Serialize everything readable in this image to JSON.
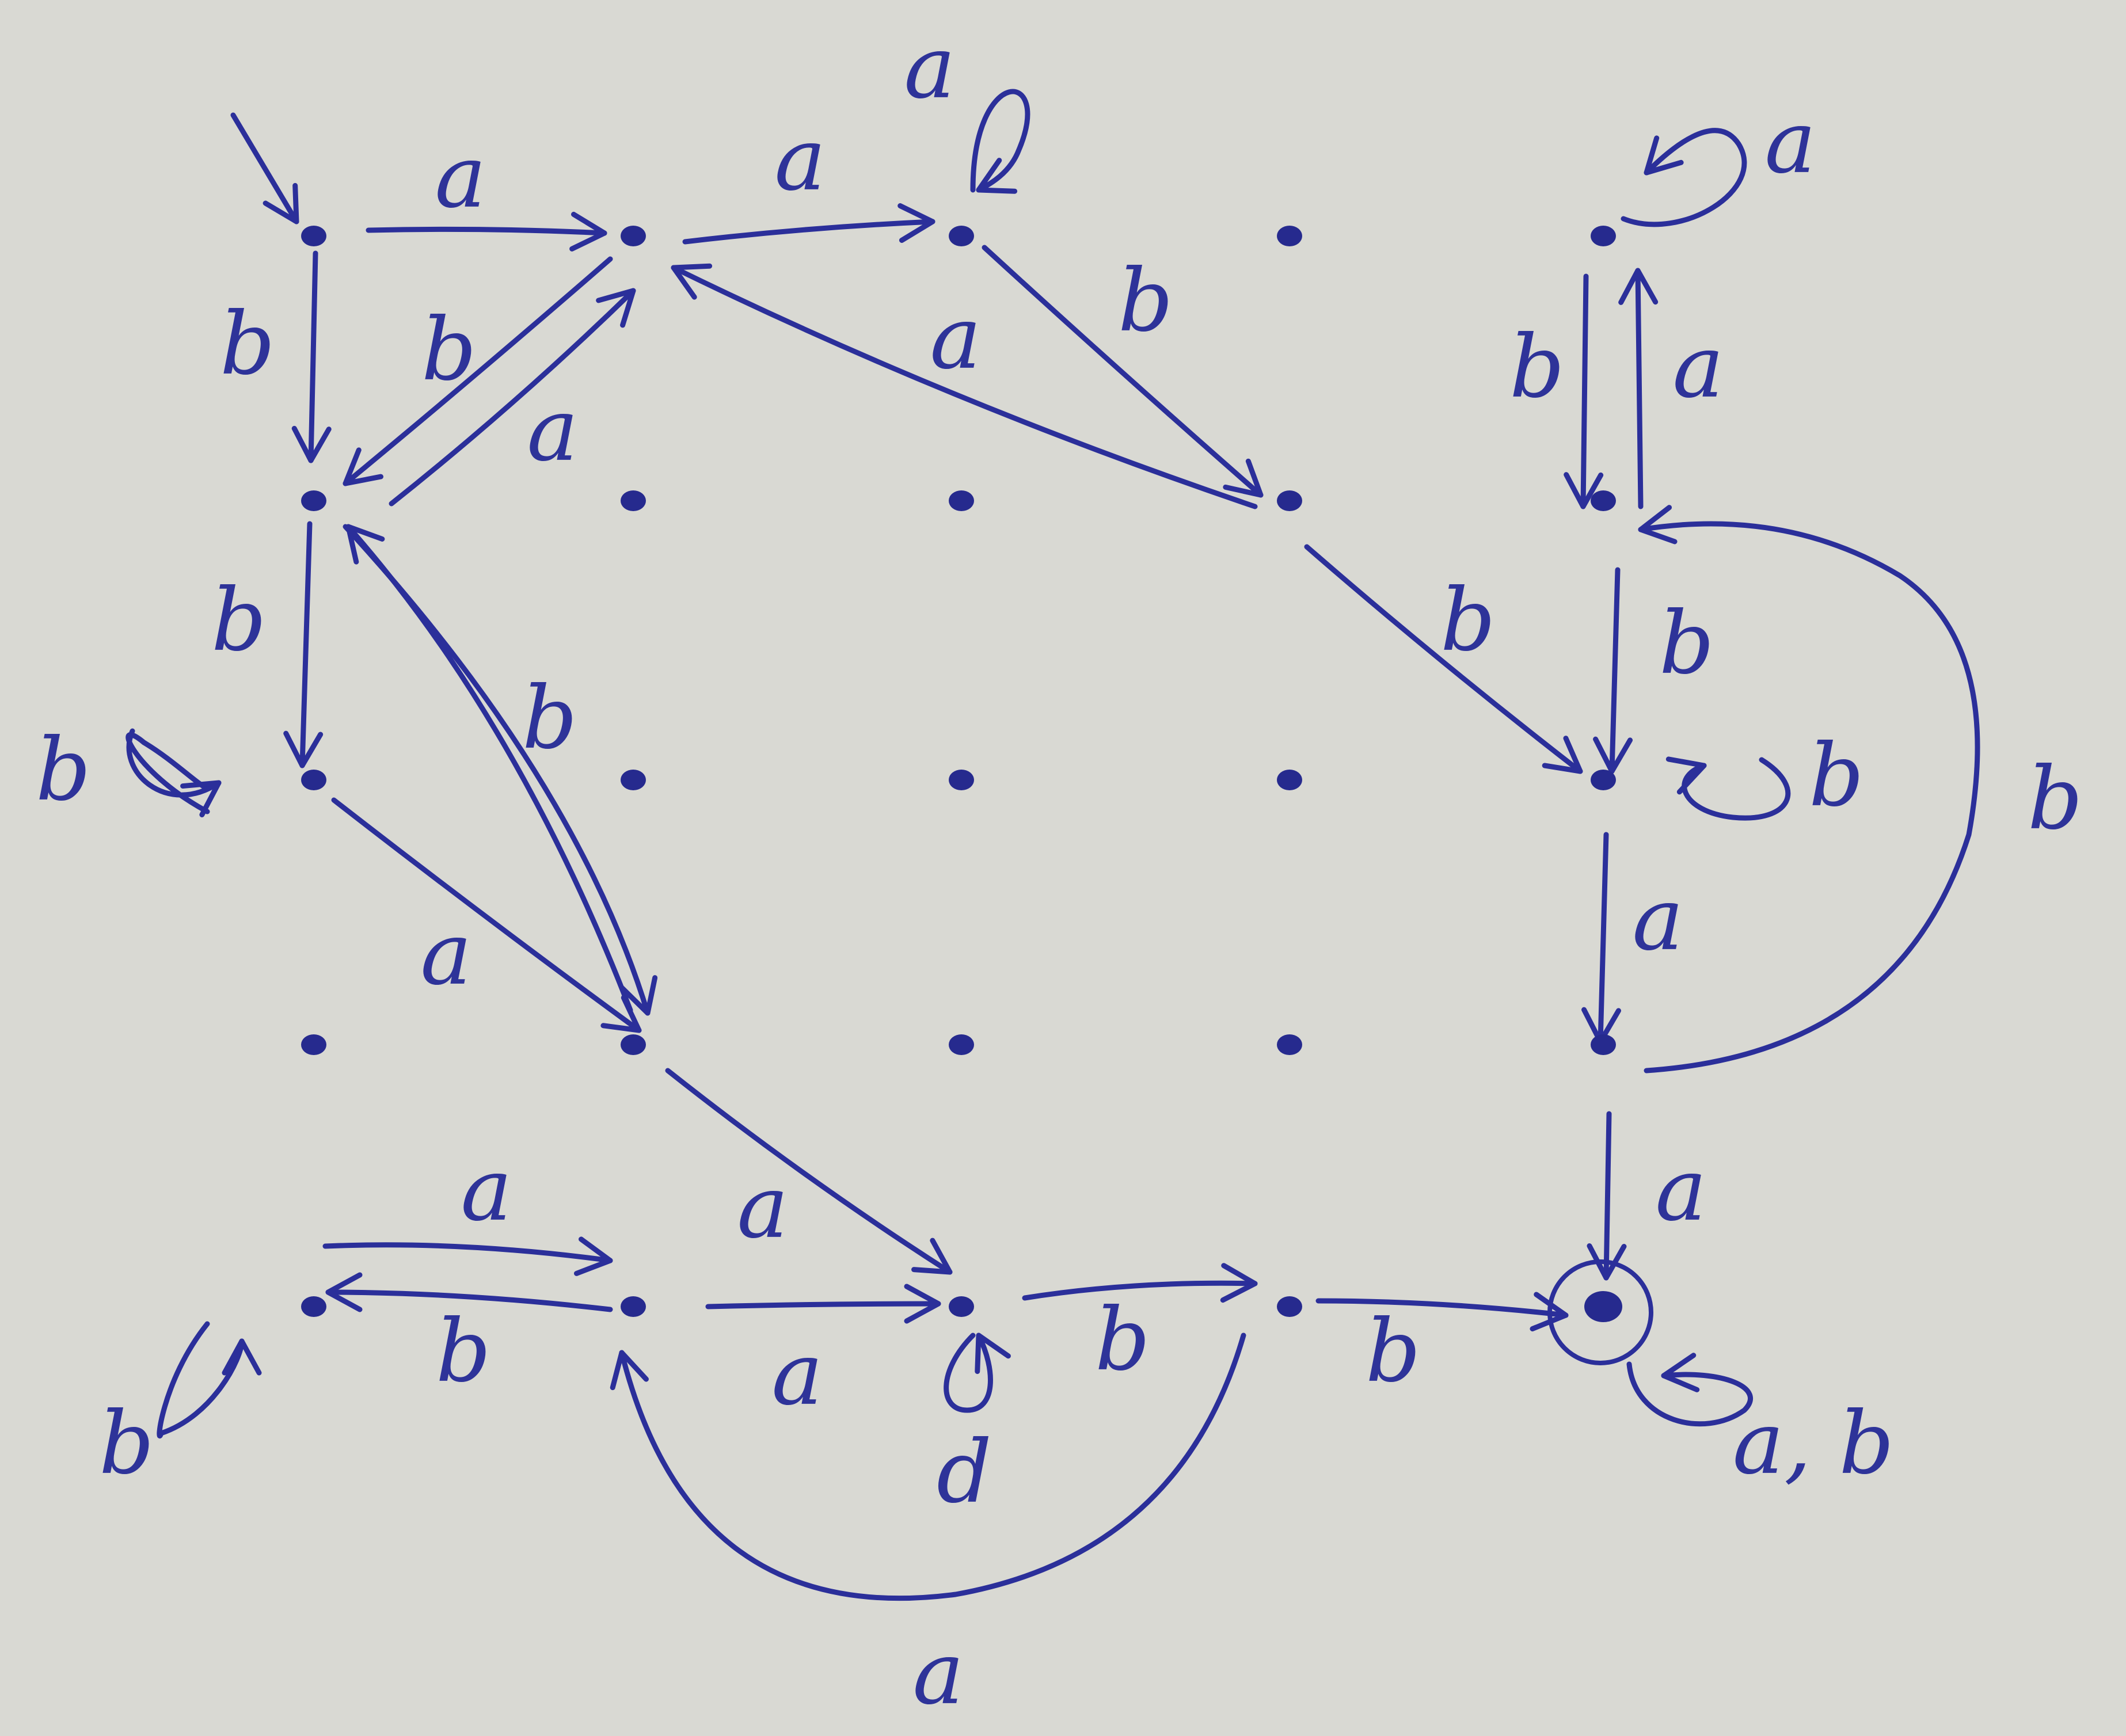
{
  "diagram": {
    "type": "finite-automaton",
    "ink_color": "#2b2f9a",
    "paper_color": "#d9d9d3",
    "labels": {
      "a": "a",
      "b": "b",
      "d": "d",
      "ab": "a, b"
    },
    "nodes": [
      {
        "id": "r0c0",
        "grid": [
          0,
          0
        ],
        "kind": "start"
      },
      {
        "id": "r0c1",
        "grid": [
          0,
          1
        ]
      },
      {
        "id": "r0c2",
        "grid": [
          0,
          2
        ]
      },
      {
        "id": "r0c3",
        "grid": [
          0,
          3
        ],
        "isolated": true
      },
      {
        "id": "r0c4",
        "grid": [
          0,
          4
        ]
      },
      {
        "id": "r1c0",
        "grid": [
          1,
          0
        ]
      },
      {
        "id": "r1c1",
        "grid": [
          1,
          1
        ],
        "isolated": true
      },
      {
        "id": "r1c2",
        "grid": [
          1,
          2
        ],
        "isolated": true
      },
      {
        "id": "r1c3",
        "grid": [
          1,
          3
        ]
      },
      {
        "id": "r1c4",
        "grid": [
          1,
          4
        ]
      },
      {
        "id": "r2c0",
        "grid": [
          2,
          0
        ]
      },
      {
        "id": "r2c1",
        "grid": [
          2,
          1
        ],
        "isolated": true
      },
      {
        "id": "r2c2",
        "grid": [
          2,
          2
        ],
        "isolated": true
      },
      {
        "id": "r2c3",
        "grid": [
          2,
          3
        ],
        "isolated": true
      },
      {
        "id": "r2c4",
        "grid": [
          2,
          4
        ]
      },
      {
        "id": "r3c0",
        "grid": [
          3,
          0
        ],
        "isolated": true
      },
      {
        "id": "r3c1",
        "grid": [
          3,
          1
        ]
      },
      {
        "id": "r3c2",
        "grid": [
          3,
          2
        ],
        "isolated": true
      },
      {
        "id": "r3c3",
        "grid": [
          3,
          3
        ],
        "isolated": true
      },
      {
        "id": "r3c4",
        "grid": [
          3,
          4
        ]
      },
      {
        "id": "r4c0",
        "grid": [
          4,
          0
        ]
      },
      {
        "id": "r4c1",
        "grid": [
          4,
          1
        ]
      },
      {
        "id": "r4c2",
        "grid": [
          4,
          2
        ]
      },
      {
        "id": "r4c3",
        "grid": [
          4,
          3
        ]
      },
      {
        "id": "r4c4",
        "grid": [
          4,
          4
        ],
        "kind": "final"
      }
    ],
    "transitions": [
      {
        "from": "r0c0",
        "to": "r0c1",
        "label": "a"
      },
      {
        "from": "r0c0",
        "to": "r1c0",
        "label": "b"
      },
      {
        "from": "r0c1",
        "to": "r1c0",
        "label": "b"
      },
      {
        "from": "r1c0",
        "to": "r0c1",
        "label": "a"
      },
      {
        "from": "r0c1",
        "to": "r0c2",
        "label": "a"
      },
      {
        "from": "r0c2",
        "to": "r0c2",
        "label": "a"
      },
      {
        "from": "r0c2",
        "to": "r1c3",
        "label": "b"
      },
      {
        "from": "r1c3",
        "to": "r0c1",
        "label": "a"
      },
      {
        "from": "r0c4",
        "to": "r0c4",
        "label": "a"
      },
      {
        "from": "r0c4",
        "to": "r1c4",
        "label": "b"
      },
      {
        "from": "r1c4",
        "to": "r0c4",
        "label": "a"
      },
      {
        "from": "r1c0",
        "to": "r2c0",
        "label": "b"
      },
      {
        "from": "r1c0",
        "to": "r3c1",
        "label": "b"
      },
      {
        "from": "r3c1",
        "to": "r1c0",
        "label": "b"
      },
      {
        "from": "r1c3",
        "to": "r2c4",
        "label": "b"
      },
      {
        "from": "r1c4",
        "to": "r2c4",
        "label": "b"
      },
      {
        "from": "r3c4",
        "to": "r1c4",
        "label": "b"
      },
      {
        "from": "r2c0",
        "to": "r2c0",
        "label": "b"
      },
      {
        "from": "r2c0",
        "to": "r3c1",
        "label": "a"
      },
      {
        "from": "r2c4",
        "to": "r2c4",
        "label": "b"
      },
      {
        "from": "r2c4",
        "to": "r3c4",
        "label": "a"
      },
      {
        "from": "r3c1",
        "to": "r4c2",
        "label": "a"
      },
      {
        "from": "r3c4",
        "to": "r4c4",
        "label": "a"
      },
      {
        "from": "r4c0",
        "to": "r4c1",
        "label": "a"
      },
      {
        "from": "r4c1",
        "to": "r4c0",
        "label": "b"
      },
      {
        "from": "r4c0",
        "to": "r4c0",
        "label": "b"
      },
      {
        "from": "r4c1",
        "to": "r4c2",
        "label": "a"
      },
      {
        "from": "r4c2",
        "to": "r4c2",
        "label": "d"
      },
      {
        "from": "r4c2",
        "to": "r4c3",
        "label": "b"
      },
      {
        "from": "r4c3",
        "to": "r4c1",
        "label": "a"
      },
      {
        "from": "r4c3",
        "to": "r4c4",
        "label": "b"
      },
      {
        "from": "r4c4",
        "to": "r4c4",
        "label": "a, b"
      }
    ]
  }
}
